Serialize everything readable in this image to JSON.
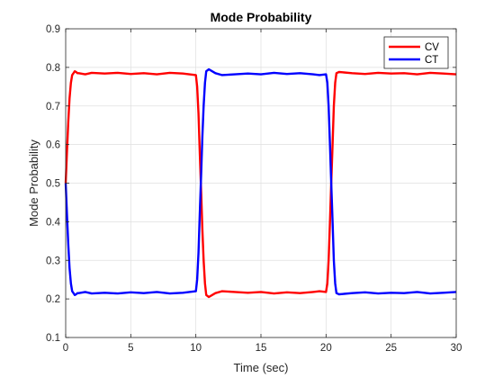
{
  "chart_data": {
    "type": "line",
    "title": "Mode Probability",
    "xlabel": "Time (sec)",
    "ylabel": "Mode Probability",
    "xlim": [
      0,
      30
    ],
    "ylim": [
      0.1,
      0.9
    ],
    "xticks": [
      0,
      5,
      10,
      15,
      20,
      25,
      30
    ],
    "yticks": [
      0.1,
      0.2,
      0.3,
      0.4,
      0.5,
      0.6,
      0.7,
      0.8,
      0.9
    ],
    "xtick_labels": [
      "0",
      "5",
      "10",
      "15",
      "20",
      "25",
      "30"
    ],
    "ytick_labels": [
      "0.1",
      "0.2",
      "0.3",
      "0.4",
      "0.5",
      "0.6",
      "0.7",
      "0.8",
      "0.9"
    ],
    "grid": true,
    "legend_position": "top-right",
    "series": [
      {
        "name": "CV",
        "color": "#ff0000",
        "x": [
          0,
          0.1,
          0.2,
          0.3,
          0.4,
          0.5,
          0.6,
          0.7,
          0.8,
          0.9,
          1.0,
          1.5,
          2.0,
          3.0,
          4.0,
          5.0,
          6.0,
          7.0,
          8.0,
          9.0,
          9.5,
          10.0,
          10.1,
          10.2,
          10.3,
          10.4,
          10.5,
          10.6,
          10.7,
          10.8,
          11.0,
          11.5,
          12.0,
          13.0,
          14.0,
          15.0,
          16.0,
          17.0,
          18.0,
          19.0,
          19.5,
          20.0,
          20.1,
          20.2,
          20.3,
          20.4,
          20.5,
          20.6,
          20.7,
          20.8,
          21.0,
          22.0,
          23.0,
          24.0,
          25.0,
          26.0,
          27.0,
          28.0,
          29.0,
          30.0
        ],
        "values": [
          0.5,
          0.58,
          0.66,
          0.72,
          0.76,
          0.78,
          0.785,
          0.79,
          0.788,
          0.785,
          0.785,
          0.782,
          0.786,
          0.784,
          0.786,
          0.783,
          0.785,
          0.782,
          0.786,
          0.784,
          0.782,
          0.78,
          0.75,
          0.68,
          0.58,
          0.48,
          0.38,
          0.3,
          0.24,
          0.21,
          0.205,
          0.215,
          0.22,
          0.218,
          0.216,
          0.218,
          0.214,
          0.217,
          0.215,
          0.218,
          0.22,
          0.218,
          0.24,
          0.3,
          0.4,
          0.5,
          0.6,
          0.7,
          0.76,
          0.785,
          0.788,
          0.785,
          0.783,
          0.786,
          0.784,
          0.785,
          0.782,
          0.786,
          0.784,
          0.782
        ]
      },
      {
        "name": "CT",
        "color": "#0000ff",
        "x": [
          0,
          0.1,
          0.2,
          0.3,
          0.4,
          0.5,
          0.6,
          0.7,
          0.8,
          0.9,
          1.0,
          1.5,
          2.0,
          3.0,
          4.0,
          5.0,
          6.0,
          7.0,
          8.0,
          9.0,
          9.5,
          10.0,
          10.1,
          10.2,
          10.3,
          10.4,
          10.5,
          10.6,
          10.7,
          10.8,
          11.0,
          11.5,
          12.0,
          13.0,
          14.0,
          15.0,
          16.0,
          17.0,
          18.0,
          19.0,
          19.5,
          20.0,
          20.1,
          20.2,
          20.3,
          20.4,
          20.5,
          20.6,
          20.7,
          20.8,
          21.0,
          22.0,
          23.0,
          24.0,
          25.0,
          26.0,
          27.0,
          28.0,
          29.0,
          30.0
        ],
        "values": [
          0.5,
          0.42,
          0.34,
          0.28,
          0.24,
          0.22,
          0.215,
          0.21,
          0.212,
          0.215,
          0.215,
          0.218,
          0.214,
          0.216,
          0.214,
          0.217,
          0.215,
          0.218,
          0.214,
          0.216,
          0.218,
          0.22,
          0.25,
          0.32,
          0.42,
          0.52,
          0.62,
          0.7,
          0.76,
          0.79,
          0.795,
          0.785,
          0.78,
          0.782,
          0.784,
          0.782,
          0.786,
          0.783,
          0.785,
          0.782,
          0.78,
          0.782,
          0.76,
          0.7,
          0.6,
          0.5,
          0.4,
          0.3,
          0.24,
          0.215,
          0.212,
          0.215,
          0.217,
          0.214,
          0.216,
          0.215,
          0.218,
          0.214,
          0.216,
          0.218
        ]
      }
    ]
  }
}
